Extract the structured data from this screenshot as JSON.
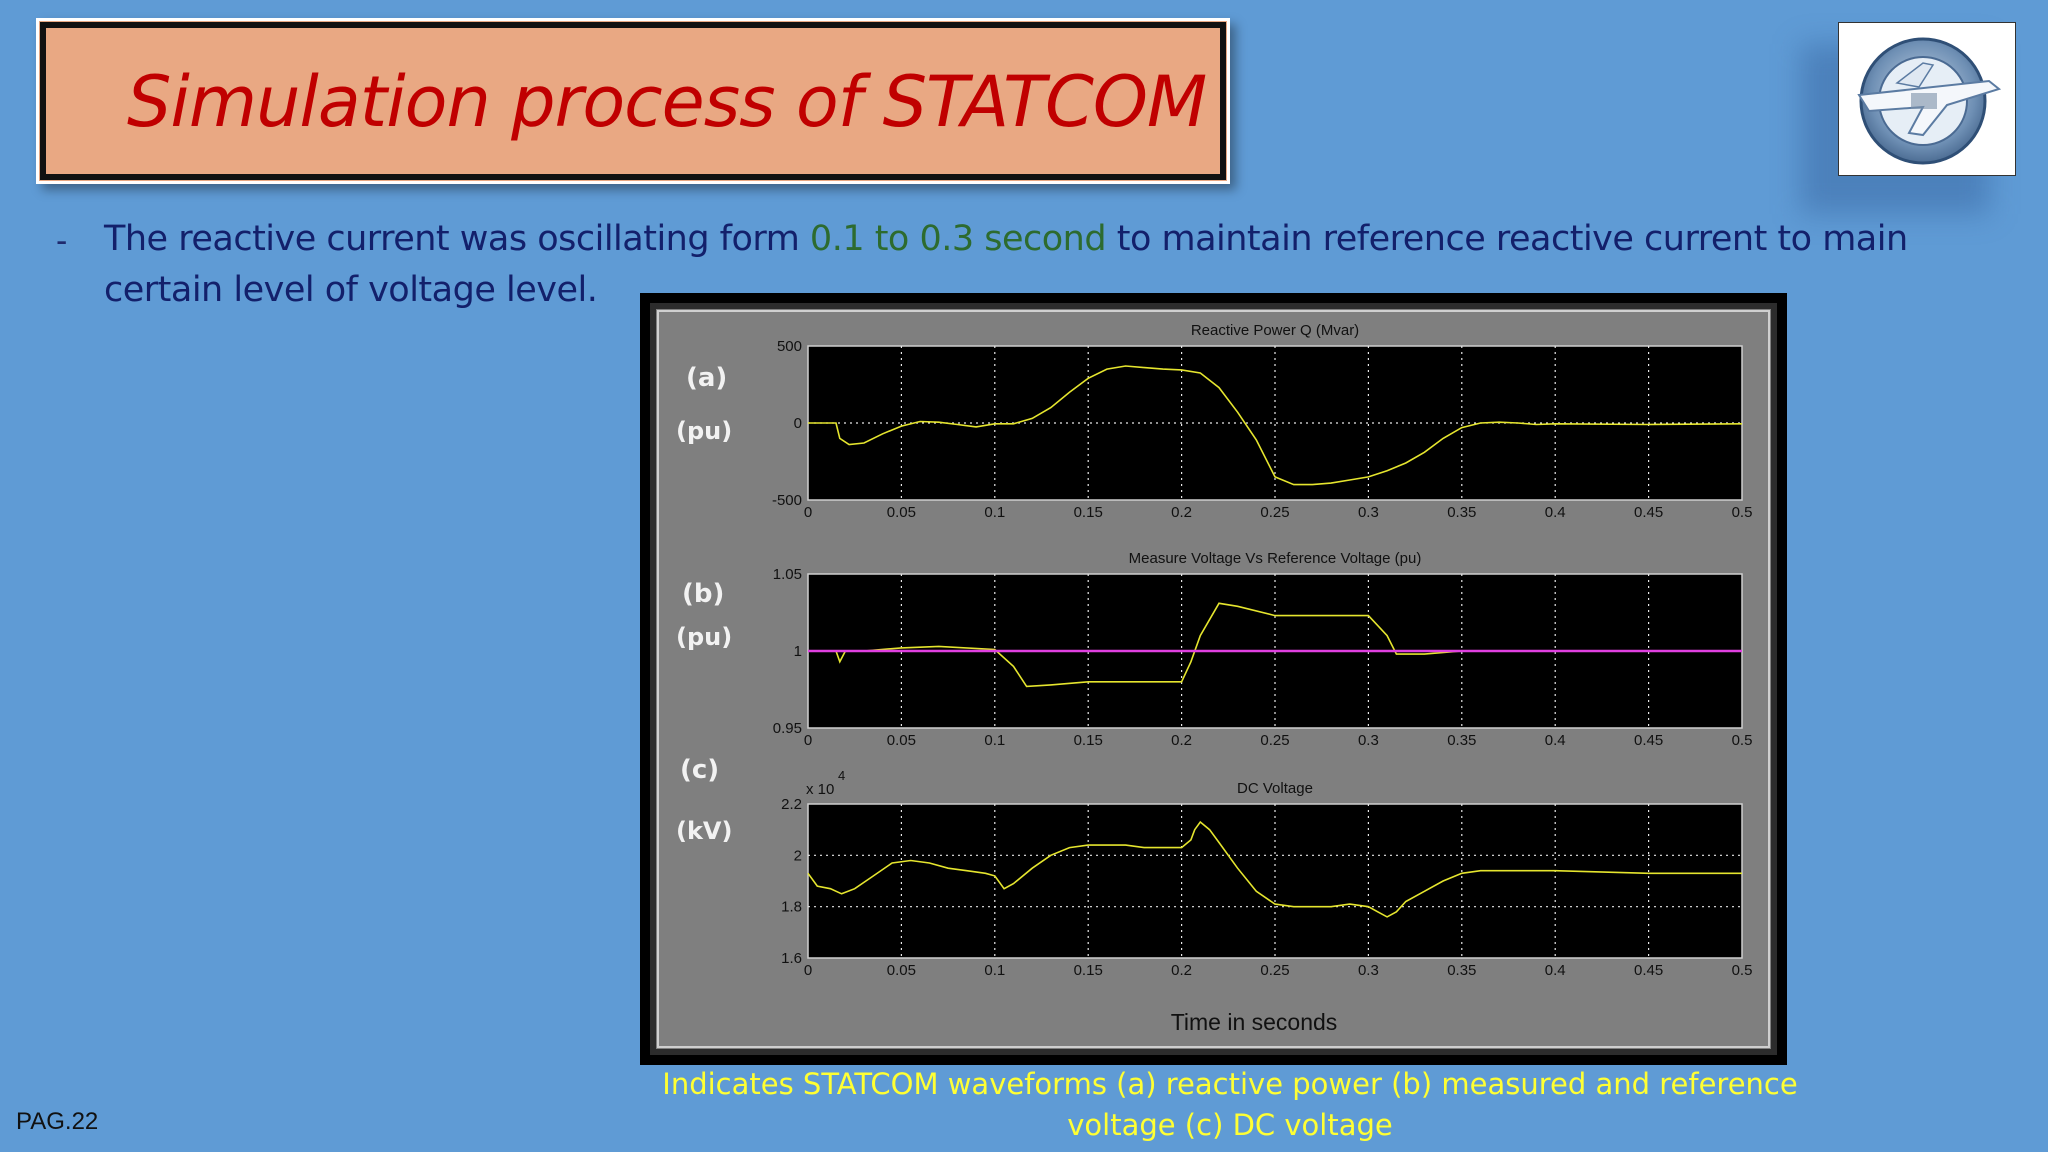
{
  "slide": {
    "title": "Simulation process of STATCOM",
    "bullet": {
      "dash": "-",
      "part1": "The reactive current was oscillating form ",
      "highlight": "0.1 to 0.3 second",
      "part2": " to maintain reference reactive current to main certain level of voltage level."
    },
    "caption": "Indicates STATCOM waveforms (a)  reactive power (b) measured and reference voltage (c) DC voltage",
    "page_number": "PAG.22",
    "logo": {
      "icon": "university-seal-icon"
    },
    "colors": {
      "background": "#5f9bd5",
      "title_box": "#e9a883",
      "title_text": "#c00000",
      "bullet_text": "#13206b",
      "highlight_text": "#2d6b2f",
      "caption_text": "#ffff33",
      "plot_trace": "#e5e52e",
      "reference_trace": "#e040e0"
    }
  },
  "figure": {
    "labels": {
      "a": "(a)",
      "b": "(b)",
      "c": "(c)"
    },
    "units": {
      "a": "(pu)",
      "b": "(pu)",
      "c": "(kV)"
    },
    "xlabel": "Time in seconds"
  },
  "chart_data": [
    {
      "type": "line",
      "title": "Reactive Power Q (Mvar)",
      "xlim": [
        0,
        0.5
      ],
      "ylim": [
        -500,
        500
      ],
      "xticks": [
        "0",
        "0.05",
        "0.1",
        "0.15",
        "0.2",
        "0.25",
        "0.3",
        "0.35",
        "0.4",
        "0.45",
        "0.5"
      ],
      "yticks": [
        "500",
        "0",
        "-500"
      ],
      "ytick_values": [
        500,
        0,
        -500
      ],
      "grid": true,
      "series": [
        {
          "x": [
            0,
            0.015,
            0.017,
            0.022,
            0.03,
            0.04,
            0.05,
            0.06,
            0.07,
            0.08,
            0.09,
            0.1,
            0.11,
            0.12,
            0.13,
            0.14,
            0.15,
            0.16,
            0.17,
            0.18,
            0.19,
            0.2,
            0.21,
            0.22,
            0.23,
            0.24,
            0.25,
            0.26,
            0.27,
            0.28,
            0.29,
            0.3,
            0.31,
            0.32,
            0.33,
            0.34,
            0.35,
            0.36,
            0.37,
            0.38,
            0.39,
            0.4,
            0.45,
            0.5
          ],
          "y": [
            0,
            0,
            -100,
            -140,
            -130,
            -70,
            -20,
            10,
            5,
            -10,
            -25,
            -5,
            -5,
            30,
            100,
            200,
            290,
            350,
            370,
            360,
            350,
            345,
            325,
            230,
            70,
            -110,
            -350,
            -400,
            -400,
            -390,
            -370,
            -350,
            -310,
            -260,
            -190,
            -100,
            -30,
            0,
            5,
            0,
            -10,
            -5,
            -10,
            -5
          ]
        }
      ]
    },
    {
      "type": "line",
      "title": "Measure Voltage Vs Reference Voltage (pu)",
      "xlim": [
        0,
        0.5
      ],
      "ylim": [
        0.95,
        1.05
      ],
      "xticks": [
        "0",
        "0.05",
        "0.1",
        "0.15",
        "0.2",
        "0.25",
        "0.3",
        "0.35",
        "0.4",
        "0.45",
        "0.5"
      ],
      "yticks": [
        "1.05",
        "1",
        "0.95"
      ],
      "ytick_values": [
        1.05,
        1.0,
        0.95
      ],
      "grid": true,
      "series": [
        {
          "x": [
            0,
            0.015,
            0.017,
            0.02,
            0.03,
            0.05,
            0.07,
            0.1,
            0.11,
            0.117,
            0.13,
            0.15,
            0.2,
            0.205,
            0.21,
            0.22,
            0.23,
            0.25,
            0.3,
            0.31,
            0.315,
            0.33,
            0.35,
            0.5
          ],
          "y": [
            1.0,
            1.0,
            0.993,
            1.0,
            1.0,
            1.002,
            1.003,
            1.001,
            0.99,
            0.977,
            0.978,
            0.98,
            0.98,
            0.993,
            1.01,
            1.031,
            1.029,
            1.023,
            1.023,
            1.01,
            0.998,
            0.998,
            1.0,
            1.0
          ]
        },
        {
          "x": [
            0,
            0.5
          ],
          "y": [
            1.0,
            1.0
          ]
        }
      ]
    },
    {
      "type": "line",
      "title": "DC Voltage",
      "xlim": [
        0,
        0.5
      ],
      "ylim": [
        1.6,
        2.2
      ],
      "xticks": [
        "0",
        "0.05",
        "0.1",
        "0.15",
        "0.2",
        "0.25",
        "0.3",
        "0.35",
        "0.4",
        "0.45",
        "0.5"
      ],
      "yticks": [
        "2.2",
        "2",
        "1.8",
        "1.6"
      ],
      "ytick_values": [
        2.2,
        2.0,
        1.8,
        1.6
      ],
      "exponent": "x 10",
      "exponent_power": "4",
      "grid": true,
      "series": [
        {
          "x": [
            0,
            0.005,
            0.012,
            0.018,
            0.025,
            0.035,
            0.045,
            0.055,
            0.065,
            0.075,
            0.085,
            0.095,
            0.1,
            0.105,
            0.11,
            0.12,
            0.13,
            0.14,
            0.15,
            0.16,
            0.17,
            0.18,
            0.19,
            0.2,
            0.205,
            0.207,
            0.21,
            0.215,
            0.22,
            0.23,
            0.24,
            0.25,
            0.26,
            0.27,
            0.28,
            0.29,
            0.3,
            0.305,
            0.31,
            0.315,
            0.32,
            0.33,
            0.34,
            0.35,
            0.36,
            0.38,
            0.4,
            0.45,
            0.5
          ],
          "y": [
            1.93,
            1.88,
            1.87,
            1.85,
            1.87,
            1.92,
            1.97,
            1.98,
            1.97,
            1.95,
            1.94,
            1.93,
            1.92,
            1.87,
            1.89,
            1.95,
            2.0,
            2.03,
            2.04,
            2.04,
            2.04,
            2.03,
            2.03,
            2.03,
            2.06,
            2.1,
            2.13,
            2.1,
            2.05,
            1.95,
            1.86,
            1.81,
            1.8,
            1.8,
            1.8,
            1.81,
            1.8,
            1.78,
            1.76,
            1.78,
            1.82,
            1.86,
            1.9,
            1.93,
            1.94,
            1.94,
            1.94,
            1.93,
            1.93
          ]
        }
      ]
    }
  ]
}
